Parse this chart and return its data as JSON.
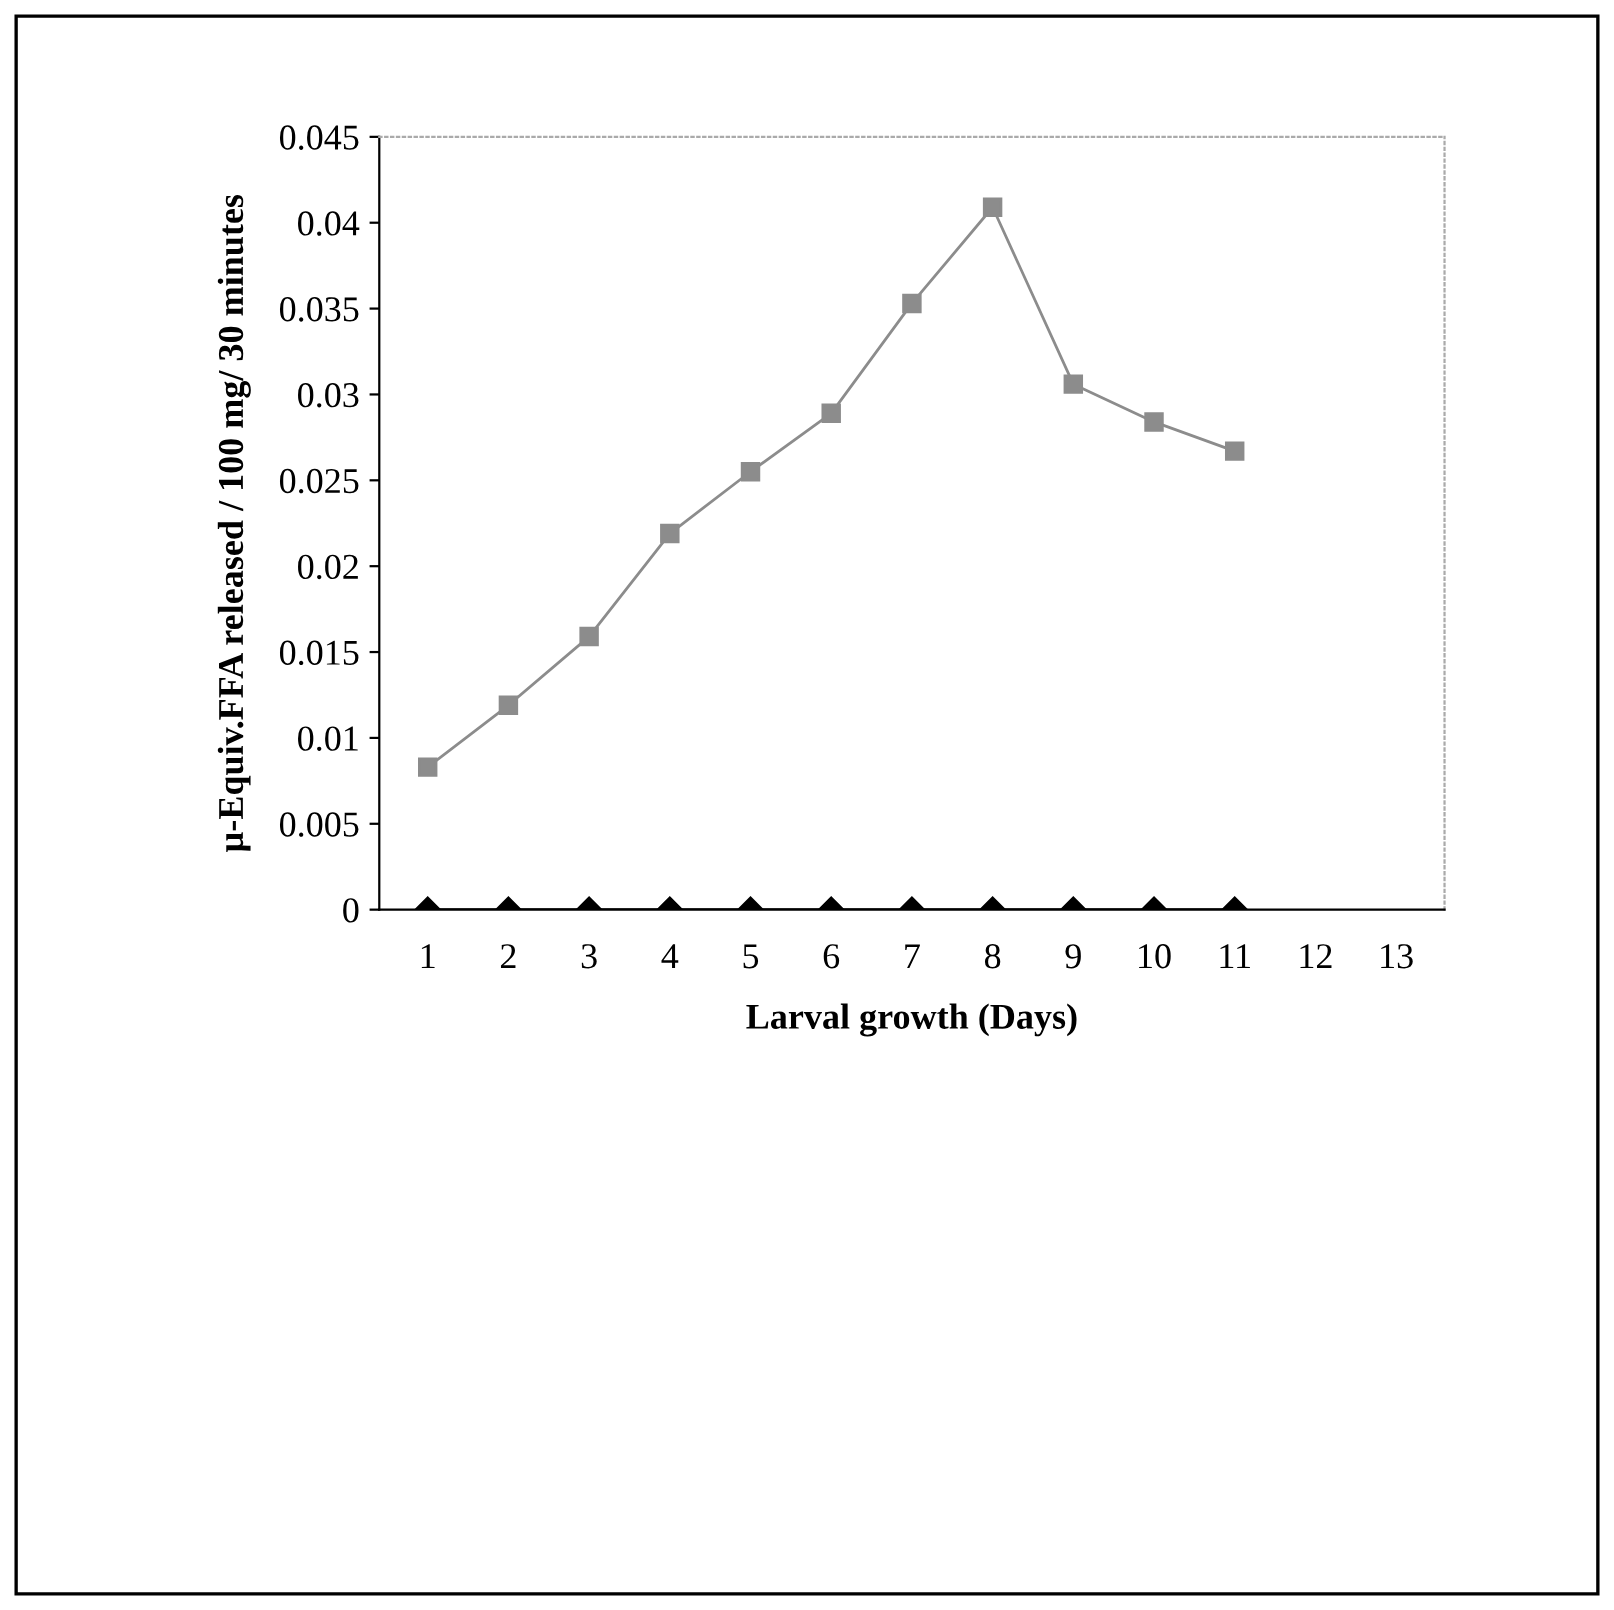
{
  "chart_data": {
    "type": "line",
    "xlabel": "Larval growth (Days)",
    "ylabel": "µ-Equiv.FFA released / 100 mg/ 30 minutes",
    "categories": [
      "1",
      "2",
      "3",
      "4",
      "5",
      "6",
      "7",
      "8",
      "9",
      "10",
      "11",
      "12",
      "13"
    ],
    "series": [
      {
        "color": "#8c8c8c",
        "marker": "square",
        "values": [
          0.0083,
          0.0119,
          0.0159,
          0.0219,
          0.0255,
          0.0289,
          0.0353,
          0.0409,
          0.0306,
          0.0284,
          0.0267,
          null,
          null
        ]
      },
      {
        "color": "#000000",
        "marker": "diamond",
        "values": [
          0,
          0,
          0,
          0,
          0,
          0,
          0,
          0,
          0,
          0,
          0,
          null,
          null
        ]
      }
    ],
    "ylim": [
      0,
      0.045
    ],
    "yticks": [
      0,
      0.005,
      0.01,
      0.015,
      0.02,
      0.025,
      0.03,
      0.035,
      0.04,
      0.045
    ],
    "grid": false,
    "legend": false,
    "line_style": "solid"
  }
}
